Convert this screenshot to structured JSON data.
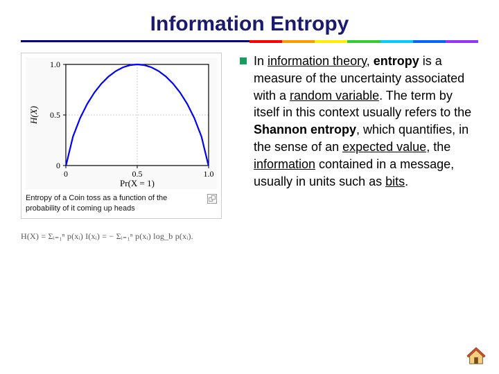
{
  "title": "Information Entropy",
  "divider": {
    "navy": "#000080",
    "rainbow": [
      "#ff0000",
      "#ff9900",
      "#ffee00",
      "#33cc33",
      "#00ccff",
      "#0066ff",
      "#9933ff"
    ]
  },
  "chart": {
    "type": "line",
    "background_color": "#f9f9f9",
    "frame_border": "#cccccc",
    "axis_color": "#000000",
    "grid_color": "#bfbfbf",
    "grid_dash": "2,2",
    "curve_color": "#0000ff",
    "curve_width": 2.2,
    "xlim": [
      0,
      1
    ],
    "ylim": [
      0,
      1
    ],
    "xticks": [
      0,
      0.5,
      1.0
    ],
    "xtick_labels": [
      "0",
      "0.5",
      "1.0"
    ],
    "yticks": [
      0,
      0.5,
      1.0
    ],
    "ytick_labels": [
      "0",
      "0.5",
      "1.0"
    ],
    "ylabel": "H(X)",
    "xlabel": "Pr(X = 1)",
    "label_fontsize": 13,
    "tick_fontsize": 12,
    "points_x": [
      0.001,
      0.05,
      0.1,
      0.15,
      0.2,
      0.25,
      0.3,
      0.35,
      0.4,
      0.45,
      0.5,
      0.55,
      0.6,
      0.65,
      0.7,
      0.75,
      0.8,
      0.85,
      0.9,
      0.95,
      0.999
    ],
    "points_y": [
      0.0,
      0.286,
      0.469,
      0.61,
      0.722,
      0.811,
      0.881,
      0.934,
      0.971,
      0.993,
      1.0,
      0.993,
      0.971,
      0.934,
      0.881,
      0.811,
      0.722,
      0.61,
      0.469,
      0.286,
      0.0
    ]
  },
  "caption": "Entropy of a Coin toss as a function of the probability of it coming up heads",
  "formula": "H(X) = Σᵢ₌₁ⁿ p(xᵢ) I(xᵢ) = − Σᵢ₌₁ⁿ p(xᵢ) log_b p(xᵢ).",
  "body": {
    "parts": [
      {
        "t": "In ",
        "s": ""
      },
      {
        "t": "information theory",
        "s": "u"
      },
      {
        "t": ", ",
        "s": ""
      },
      {
        "t": "entropy",
        "s": "b"
      },
      {
        "t": " is a measure of the uncertainty associated with a ",
        "s": ""
      },
      {
        "t": "random variable",
        "s": "u"
      },
      {
        "t": ". The term by itself in this context usually refers to the ",
        "s": ""
      },
      {
        "t": "Shannon entropy",
        "s": "b"
      },
      {
        "t": ", which quantifies, in the sense of an ",
        "s": ""
      },
      {
        "t": "expected value",
        "s": "u"
      },
      {
        "t": ", the ",
        "s": ""
      },
      {
        "t": "information",
        "s": "u"
      },
      {
        "t": " contained in a message, usually in units such as ",
        "s": ""
      },
      {
        "t": "bits",
        "s": "u"
      },
      {
        "t": ".",
        "s": ""
      }
    ]
  },
  "bullet_color": "#14a05a",
  "home_icon_colors": {
    "roof": "#d94a2a",
    "wall": "#f5d080",
    "outline": "#7a4a1a"
  }
}
